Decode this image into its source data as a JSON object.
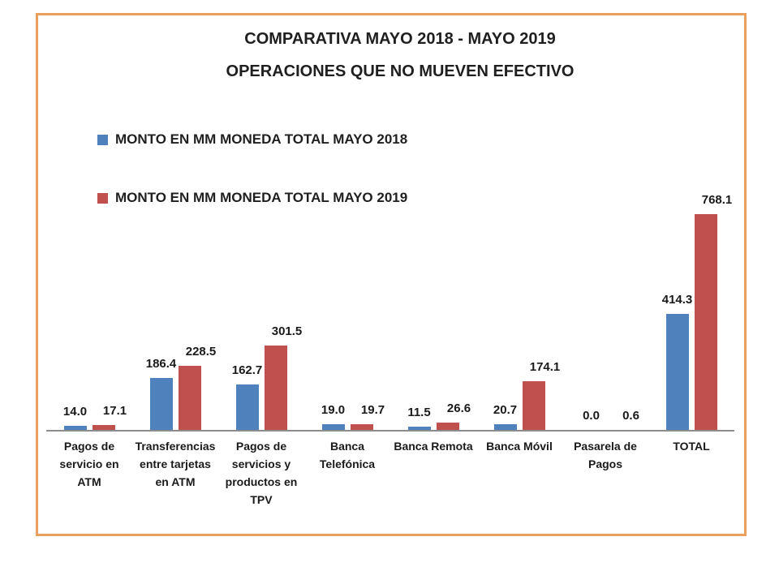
{
  "slide": {
    "background": "#ffffff",
    "border_color": "#E9A05C"
  },
  "title": {
    "line1": "COMPARATIVA MAYO 2018 - MAYO 2019",
    "line2": "OPERACIONES QUE NO MUEVEN EFECTIVO"
  },
  "legend": {
    "items": [
      {
        "label": "MONTO EN MM MONEDA TOTAL MAYO 2018",
        "color": "#4F81BD"
      },
      {
        "label": "MONTO EN MM MONEDA TOTAL MAYO 2019",
        "color": "#C0504D"
      }
    ]
  },
  "chart_data": {
    "type": "bar",
    "title": "COMPARATIVA MAYO 2018 - MAYO 2019",
    "subtitle": "OPERACIONES QUE NO MUEVEN EFECTIVO",
    "categories": [
      "Pagos de servicio en ATM",
      "Transferencias entre tarjetas en ATM",
      "Pagos de servicios y productos en TPV",
      "Banca Telefónica",
      "Banca Remota",
      "Banca Móvil",
      "Pasarela de Pagos",
      "TOTAL"
    ],
    "category_lines": [
      [
        "Pagos de",
        "servicio en",
        "ATM"
      ],
      [
        "Transferencias",
        "entre tarjetas",
        "en ATM"
      ],
      [
        "Pagos de",
        "servicios y",
        "productos en",
        "TPV"
      ],
      [
        "Banca",
        "Telefónica"
      ],
      [
        "Banca Remota"
      ],
      [
        "Banca Móvil"
      ],
      [
        "Pasarela de",
        "Pagos"
      ],
      [
        "TOTAL"
      ]
    ],
    "series": [
      {
        "name": "MONTO EN MM MONEDA TOTAL MAYO 2018",
        "key": "mayo-2018",
        "color": "#4F81BD",
        "values": [
          14.0,
          186.4,
          162.7,
          19.0,
          11.5,
          20.7,
          0.0,
          414.3
        ]
      },
      {
        "name": "MONTO EN MM MONEDA TOTAL MAYO 2019",
        "key": "mayo-2019",
        "color": "#C0504D",
        "values": [
          17.1,
          228.5,
          301.5,
          19.7,
          26.6,
          174.1,
          0.6,
          768.1
        ]
      }
    ],
    "value_label_decimals": 1,
    "ylim": [
      0,
      810
    ],
    "grid": false,
    "y_axis_visible": false,
    "axis_line_color": "#8C8C8C",
    "legend_position": "top-left"
  }
}
